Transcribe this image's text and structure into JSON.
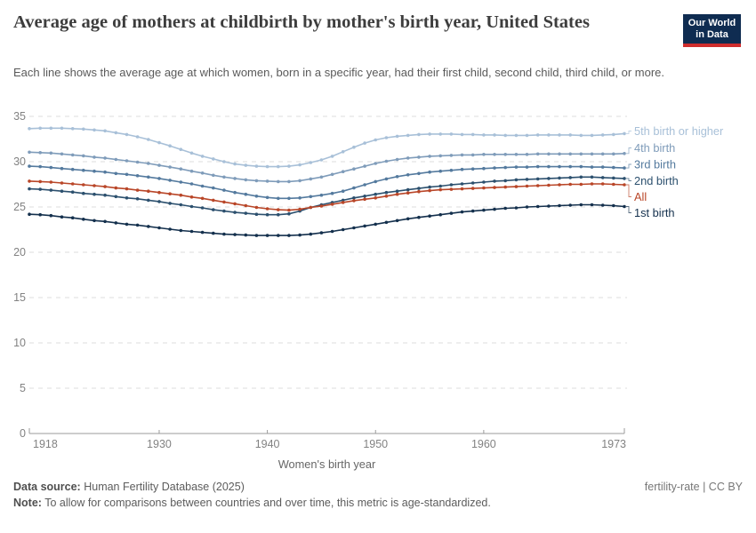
{
  "header": {
    "title": "Average age of mothers at childbirth by mother's birth year, United States",
    "subtitle": "Each line shows the average age at which women, born in a specific year, had their first child, second child, third child, or more.",
    "logo": {
      "line1": "Our World",
      "line2": "in Data",
      "bg": "#0f2c51",
      "stripe": "#cf2d2d"
    }
  },
  "footer": {
    "source_label": "Data source:",
    "source_value": "Human Fertility Database (2025)",
    "rights": "fertility-rate | CC BY",
    "note_label": "Note:",
    "note_value": "To allow for comparisons between countries and over time, this metric is age-standardized."
  },
  "chart_data": {
    "type": "line",
    "title": "Average age of mothers at childbirth by mother's birth year, United States",
    "xlabel": "Women's birth year",
    "ylabel": "",
    "xlim": [
      1918,
      1973
    ],
    "ylim": [
      0,
      35
    ],
    "x_ticks": [
      1918,
      1930,
      1940,
      1950,
      1960,
      1973
    ],
    "y_ticks": [
      0,
      5,
      10,
      15,
      20,
      25,
      30,
      35
    ],
    "grid": "horizontal-dashed",
    "legend_position": "right-of-plot",
    "marker": "circle",
    "colors": {
      "grid": "#dcdcdc",
      "axis": "#9b9b9b",
      "tick_label": "#828282",
      "axis_title": "#666666"
    },
    "x": [
      1918,
      1919,
      1920,
      1921,
      1922,
      1923,
      1924,
      1925,
      1926,
      1927,
      1928,
      1929,
      1930,
      1931,
      1932,
      1933,
      1934,
      1935,
      1936,
      1937,
      1938,
      1939,
      1940,
      1941,
      1942,
      1943,
      1944,
      1945,
      1946,
      1947,
      1948,
      1949,
      1950,
      1951,
      1952,
      1953,
      1954,
      1955,
      1956,
      1957,
      1958,
      1959,
      1960,
      1961,
      1962,
      1963,
      1964,
      1965,
      1966,
      1967,
      1968,
      1969,
      1970,
      1971,
      1972,
      1973
    ],
    "series": [
      {
        "name": "5th birth or higher",
        "color": "#a8c0d8",
        "values": [
          33.65,
          33.7,
          33.7,
          33.7,
          33.65,
          33.6,
          33.5,
          33.4,
          33.2,
          33.0,
          32.75,
          32.45,
          32.1,
          31.75,
          31.35,
          30.95,
          30.6,
          30.3,
          30.0,
          29.75,
          29.6,
          29.5,
          29.45,
          29.45,
          29.5,
          29.65,
          29.9,
          30.2,
          30.6,
          31.1,
          31.6,
          32.05,
          32.4,
          32.65,
          32.8,
          32.9,
          33.0,
          33.05,
          33.05,
          33.05,
          33.0,
          33.0,
          32.95,
          32.95,
          32.9,
          32.9,
          32.9,
          32.95,
          32.95,
          32.95,
          32.95,
          32.9,
          32.9,
          32.95,
          33.0,
          33.1
        ]
      },
      {
        "name": "4th birth",
        "color": "#7f9cba",
        "values": [
          31.05,
          31.0,
          30.95,
          30.85,
          30.75,
          30.65,
          30.5,
          30.4,
          30.25,
          30.1,
          29.95,
          29.8,
          29.6,
          29.4,
          29.2,
          28.95,
          28.75,
          28.5,
          28.3,
          28.15,
          28.0,
          27.9,
          27.85,
          27.8,
          27.8,
          27.9,
          28.1,
          28.3,
          28.6,
          28.9,
          29.2,
          29.5,
          29.8,
          30.05,
          30.25,
          30.4,
          30.5,
          30.6,
          30.65,
          30.7,
          30.75,
          30.75,
          30.8,
          30.8,
          30.8,
          30.8,
          30.8,
          30.85,
          30.85,
          30.85,
          30.85,
          30.85,
          30.85,
          30.85,
          30.85,
          30.9
        ]
      },
      {
        "name": "3rd birth",
        "color": "#547a9e",
        "values": [
          29.5,
          29.45,
          29.35,
          29.25,
          29.15,
          29.05,
          28.95,
          28.85,
          28.7,
          28.6,
          28.45,
          28.3,
          28.15,
          27.95,
          27.75,
          27.55,
          27.3,
          27.1,
          26.85,
          26.6,
          26.4,
          26.2,
          26.05,
          25.95,
          25.95,
          26.0,
          26.15,
          26.3,
          26.5,
          26.75,
          27.1,
          27.45,
          27.8,
          28.1,
          28.35,
          28.55,
          28.7,
          28.85,
          28.95,
          29.05,
          29.15,
          29.2,
          29.25,
          29.3,
          29.35,
          29.4,
          29.4,
          29.45,
          29.45,
          29.45,
          29.45,
          29.45,
          29.4,
          29.4,
          29.35,
          29.3
        ]
      },
      {
        "name": "2nd birth",
        "color": "#2c506e",
        "values": [
          27.0,
          26.95,
          26.85,
          26.75,
          26.65,
          26.5,
          26.4,
          26.3,
          26.15,
          26.0,
          25.9,
          25.75,
          25.6,
          25.4,
          25.25,
          25.05,
          24.9,
          24.7,
          24.55,
          24.4,
          24.3,
          24.2,
          24.15,
          24.15,
          24.25,
          24.55,
          24.95,
          25.25,
          25.5,
          25.75,
          26.0,
          26.2,
          26.4,
          26.6,
          26.75,
          26.9,
          27.05,
          27.2,
          27.3,
          27.45,
          27.55,
          27.65,
          27.75,
          27.85,
          27.9,
          28.0,
          28.05,
          28.1,
          28.15,
          28.2,
          28.25,
          28.3,
          28.3,
          28.25,
          28.2,
          28.15
        ]
      },
      {
        "name": "All",
        "color": "#b94628",
        "values": [
          27.85,
          27.8,
          27.75,
          27.65,
          27.55,
          27.45,
          27.35,
          27.25,
          27.1,
          27.0,
          26.85,
          26.75,
          26.6,
          26.45,
          26.3,
          26.1,
          25.95,
          25.75,
          25.55,
          25.35,
          25.15,
          24.95,
          24.8,
          24.7,
          24.65,
          24.75,
          24.95,
          25.1,
          25.3,
          25.5,
          25.7,
          25.85,
          26.0,
          26.2,
          26.4,
          26.55,
          26.7,
          26.8,
          26.9,
          26.95,
          27.0,
          27.05,
          27.1,
          27.15,
          27.2,
          27.25,
          27.3,
          27.35,
          27.4,
          27.45,
          27.5,
          27.5,
          27.55,
          27.55,
          27.5,
          27.45
        ]
      },
      {
        "name": "1st birth",
        "color": "#14304d",
        "values": [
          24.2,
          24.15,
          24.05,
          23.9,
          23.8,
          23.65,
          23.5,
          23.4,
          23.25,
          23.1,
          23.0,
          22.85,
          22.7,
          22.55,
          22.4,
          22.3,
          22.2,
          22.1,
          22.0,
          21.95,
          21.9,
          21.85,
          21.85,
          21.85,
          21.85,
          21.9,
          22.0,
          22.15,
          22.3,
          22.5,
          22.7,
          22.9,
          23.1,
          23.3,
          23.5,
          23.7,
          23.85,
          24.0,
          24.15,
          24.3,
          24.45,
          24.55,
          24.65,
          24.75,
          24.85,
          24.9,
          25.0,
          25.05,
          25.1,
          25.15,
          25.2,
          25.25,
          25.25,
          25.2,
          25.15,
          25.05
        ]
      }
    ]
  }
}
